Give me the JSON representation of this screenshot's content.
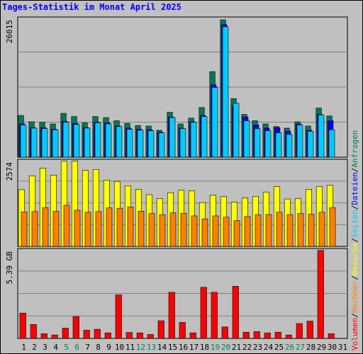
{
  "page": {
    "title": "Tages-Statistik im Monat April 2025"
  },
  "colors": {
    "background": "#c0c0c0",
    "plot_background": "#c0c0c0",
    "anfragen": "#00805a",
    "dateien": "#0000ff",
    "seiten": "#00ccff",
    "besuche": "#ffff00",
    "rechner": "#ff8000",
    "volumen": "#ff0000",
    "title": "#0000ff",
    "weekend_label": "#00805a"
  },
  "legend": {
    "volumen": "Volumen",
    "rechner": "Rechner",
    "besuche": "Besuche",
    "seiten": "Seiten",
    "dateien": "Dateien",
    "anfragen": "Anfragen",
    "separator": "/"
  },
  "chart_data": [
    {
      "type": "bar",
      "panel": "anfragen-dateien-seiten",
      "categories": [
        "1",
        "2",
        "3",
        "4",
        "5",
        "6",
        "7",
        "8",
        "9",
        "10",
        "11",
        "12",
        "13",
        "14",
        "15",
        "16",
        "17",
        "18",
        "19",
        "20",
        "21",
        "22",
        "23",
        "24",
        "25",
        "26",
        "27",
        "28",
        "29",
        "30",
        "31"
      ],
      "weekend_days": [
        "5",
        "6",
        "12",
        "13",
        "19",
        "20",
        "26",
        "27"
      ],
      "max_label": "26015",
      "ylim": [
        0,
        26015
      ],
      "series": [
        {
          "name": "Anfragen",
          "color_key": "anfragen",
          "values": [
            7900,
            6700,
            6600,
            6300,
            8300,
            7700,
            6500,
            7700,
            7500,
            6900,
            6400,
            6000,
            5900,
            5100,
            8500,
            6300,
            7400,
            9400,
            16200,
            26015,
            11100,
            8100,
            6900,
            6300,
            5800,
            5500,
            6700,
            5900,
            9300,
            7800,
            null
          ]
        },
        {
          "name": "Dateien",
          "color_key": "dateien",
          "values": [
            6300,
            5600,
            5600,
            5300,
            6800,
            6400,
            5600,
            6600,
            6500,
            5900,
            5500,
            5300,
            5200,
            4700,
            7600,
            5500,
            6700,
            7900,
            13700,
            25100,
            9700,
            7600,
            6100,
            5500,
            5600,
            4900,
            6300,
            5100,
            8100,
            6900,
            null
          ]
        },
        {
          "name": "Seiten",
          "color_key": "seiten",
          "values": [
            6100,
            5500,
            5400,
            5200,
            6600,
            6200,
            5500,
            6500,
            6300,
            5800,
            5300,
            5100,
            5000,
            4600,
            7500,
            5400,
            6600,
            7700,
            13200,
            24700,
            10200,
            6900,
            5400,
            5000,
            4600,
            4300,
            6100,
            4900,
            8000,
            5200,
            null
          ]
        }
      ]
    },
    {
      "type": "bar",
      "panel": "besuche-rechner",
      "categories": [
        "1",
        "2",
        "3",
        "4",
        "5",
        "6",
        "7",
        "8",
        "9",
        "10",
        "11",
        "12",
        "13",
        "14",
        "15",
        "16",
        "17",
        "18",
        "19",
        "20",
        "21",
        "22",
        "23",
        "24",
        "25",
        "26",
        "27",
        "28",
        "29",
        "30",
        "31"
      ],
      "max_label": "2574",
      "ylim": [
        0,
        2574
      ],
      "series": [
        {
          "name": "Besuche",
          "color_key": "besuche",
          "values": [
            1710,
            2130,
            2360,
            2150,
            2570,
            2570,
            2290,
            2320,
            2000,
            1960,
            1830,
            1720,
            1560,
            1440,
            1620,
            1690,
            1680,
            1320,
            1540,
            1500,
            1330,
            1460,
            1510,
            1640,
            1800,
            1430,
            1440,
            1720,
            1800,
            1840,
            null
          ]
        },
        {
          "name": "Rechner",
          "color_key": "rechner",
          "values": [
            1040,
            1050,
            1170,
            1060,
            1240,
            1090,
            1030,
            1050,
            1160,
            1150,
            1190,
            1060,
            990,
            960,
            1010,
            1000,
            920,
            830,
            920,
            880,
            780,
            900,
            950,
            960,
            1030,
            960,
            990,
            970,
            1030,
            1170,
            null
          ]
        }
      ]
    },
    {
      "type": "bar",
      "panel": "volumen",
      "categories": [
        "1",
        "2",
        "3",
        "4",
        "5",
        "6",
        "7",
        "8",
        "9",
        "10",
        "11",
        "12",
        "13",
        "14",
        "15",
        "16",
        "17",
        "18",
        "19",
        "20",
        "21",
        "22",
        "23",
        "24",
        "25",
        "26",
        "27",
        "28",
        "29",
        "30",
        "31"
      ],
      "max_label": "5.39 GB",
      "ylim": [
        0,
        5.39
      ],
      "series": [
        {
          "name": "Volumen",
          "color_key": "volumen",
          "values": [
            1.55,
            0.85,
            0.29,
            0.21,
            0.63,
            1.34,
            0.5,
            0.56,
            0.34,
            2.66,
            0.36,
            0.34,
            0.24,
            1.08,
            2.82,
            0.98,
            0.34,
            3.13,
            2.82,
            0.7,
            3.19,
            0.38,
            0.42,
            0.34,
            0.38,
            0.21,
            0.91,
            1.06,
            5.39,
            0.29,
            null
          ]
        }
      ]
    }
  ]
}
